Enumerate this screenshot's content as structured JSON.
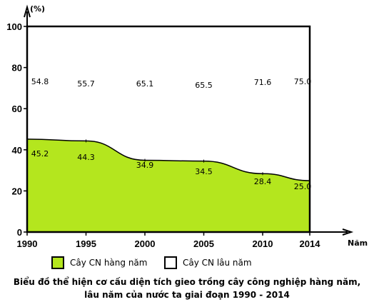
{
  "chart_data": {
    "type": "area",
    "y_unit": "(%)",
    "x_axis_label": "Năm",
    "x": [
      1990,
      1995,
      2000,
      2005,
      2010,
      2014
    ],
    "y_ticks": [
      0,
      20,
      40,
      60,
      80,
      100
    ],
    "ylim": [
      0,
      100
    ],
    "series": [
      {
        "name": "Cây CN hàng năm",
        "values": [
          45.2,
          44.3,
          34.9,
          34.5,
          28.4,
          25.0
        ],
        "color": "#b4e61e"
      },
      {
        "name": "Cây CN lâu năm",
        "values": [
          54.8,
          55.7,
          65.1,
          65.5,
          71.6,
          75.0
        ],
        "color": "#ffffff"
      }
    ],
    "title_line1": "Biểu đồ thể hiện cơ cấu diện tích gieo trồng cây công nghiệp hàng năm,",
    "title_line2": "lâu năm của nước ta giai đoạn 1990 - 2014"
  }
}
